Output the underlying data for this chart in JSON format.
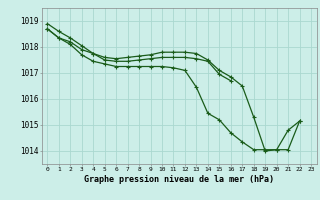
{
  "title": "Graphe pression niveau de la mer (hPa)",
  "bg_color": "#cceee8",
  "grid_color": "#aad8d0",
  "line_color": "#1a5c1a",
  "x_labels": [
    "0",
    "1",
    "2",
    "3",
    "4",
    "5",
    "6",
    "7",
    "8",
    "9",
    "10",
    "11",
    "12",
    "13",
    "14",
    "15",
    "16",
    "17",
    "18",
    "19",
    "20",
    "21",
    "22",
    "23"
  ],
  "ylim": [
    1013.5,
    1019.5
  ],
  "yticks": [
    1014,
    1015,
    1016,
    1017,
    1018,
    1019
  ],
  "series": [
    [
      1018.9,
      1018.6,
      1018.35,
      1018.05,
      1017.75,
      1017.6,
      1017.55,
      1017.6,
      1017.65,
      1017.7,
      1017.8,
      1017.8,
      1017.8,
      1017.75,
      1017.5,
      1017.1,
      1016.85,
      1016.5,
      1015.3,
      1014.0,
      1014.05,
      1014.05,
      1015.15,
      null
    ],
    [
      1018.7,
      1018.35,
      1018.2,
      1017.9,
      1017.75,
      1017.5,
      1017.45,
      1017.45,
      1017.5,
      1017.55,
      1017.6,
      1017.6,
      1017.6,
      1017.55,
      1017.45,
      1016.95,
      1016.7,
      null,
      null,
      null,
      null,
      null,
      null,
      null
    ],
    [
      1018.7,
      1018.35,
      1018.1,
      1017.7,
      1017.45,
      1017.35,
      1017.25,
      1017.25,
      1017.25,
      1017.25,
      1017.25,
      1017.2,
      1017.1,
      1016.45,
      1015.45,
      1015.2,
      1014.7,
      1014.35,
      1014.05,
      1014.05,
      1014.05,
      1014.8,
      1015.15,
      null
    ]
  ]
}
